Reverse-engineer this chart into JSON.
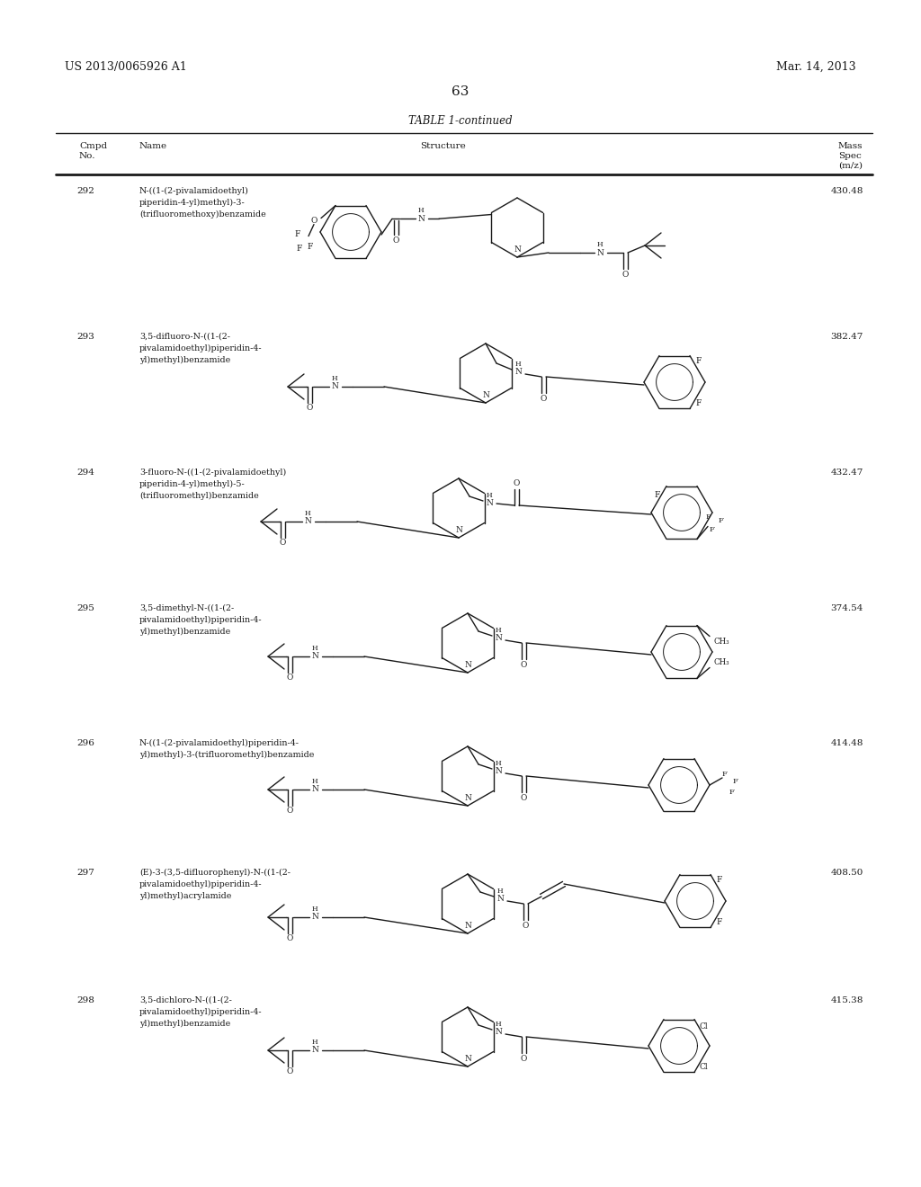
{
  "patent_number": "US 2013/0065926 A1",
  "patent_date": "Mar. 14, 2013",
  "page_number": "63",
  "table_title": "TABLE 1-continued",
  "bg_color": "#ffffff",
  "text_color": "#1a1a1a",
  "compounds": [
    {
      "num": "292",
      "name": [
        "N-((1-(2-pivalamidoethyl)",
        "piperidin-4-yl)methyl)-3-",
        "(trifluoromethoxy)benzamide"
      ],
      "mass": "430.48"
    },
    {
      "num": "293",
      "name": [
        "3,5-difluoro-N-((1-(2-",
        "pivalamidoethyl)piperidin-4-",
        "yl)methyl)benzamide"
      ],
      "mass": "382.47"
    },
    {
      "num": "294",
      "name": [
        "3-fluoro-N-((1-(2-pivalamidoethyl)",
        "piperidin-4-yl)methyl)-5-",
        "(trifluoromethyl)benzamide"
      ],
      "mass": "432.47"
    },
    {
      "num": "295",
      "name": [
        "3,5-dimethyl-N-((1-(2-",
        "pivalamidoethyl)piperidin-4-",
        "yl)methyl)benzamide"
      ],
      "mass": "374.54"
    },
    {
      "num": "296",
      "name": [
        "N-((1-(2-pivalamidoethyl)piperidin-4-",
        "yl)methyl)-3-(trifluoromethyl)benzamide"
      ],
      "mass": "414.48"
    },
    {
      "num": "297",
      "name": [
        "(E)-3-(3,5-difluorophenyl)-N-((1-(2-",
        "pivalamidoethyl)piperidin-4-",
        "yl)methyl)acrylamide"
      ],
      "mass": "408.50"
    },
    {
      "num": "298",
      "name": [
        "3,5-dichloro-N-((1-(2-",
        "pivalamidoethyl)piperidin-4-",
        "yl)methyl)benzamide"
      ],
      "mass": "415.38"
    }
  ]
}
